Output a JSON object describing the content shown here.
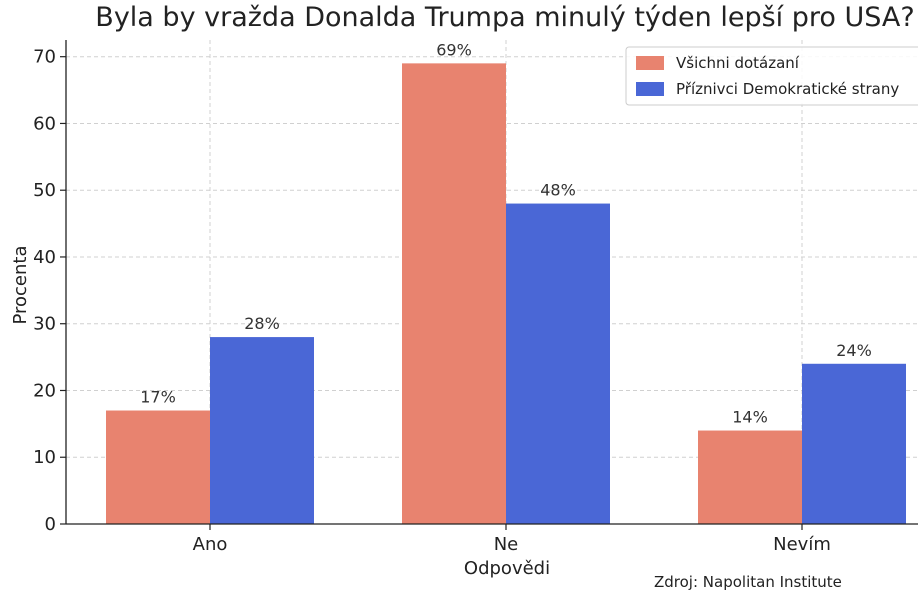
{
  "chart_data": {
    "type": "bar",
    "title": "Byla by vražda Donalda Trumpa minulý týden lepší pro USA?",
    "xlabel": "Odpovědi",
    "ylabel": "Procenta",
    "categories": [
      "Ano",
      "Ne",
      "Nevím"
    ],
    "series": [
      {
        "name": "Všichni dotázaní",
        "values": [
          17,
          69,
          14
        ],
        "labels": [
          "17%",
          "69%",
          "14%"
        ],
        "color": "#e8836f"
      },
      {
        "name": "Příznivci Demokratické strany",
        "values": [
          28,
          48,
          24
        ],
        "labels": [
          "28%",
          "48%",
          "24%"
        ],
        "color": "#4a67d6"
      }
    ],
    "ylim": [
      0,
      72.5
    ],
    "yticks": [
      0,
      10,
      20,
      30,
      40,
      50,
      60,
      70
    ],
    "grid": true,
    "legend_position": "top-right",
    "source": "Zdroj: Napolitan Institute"
  }
}
